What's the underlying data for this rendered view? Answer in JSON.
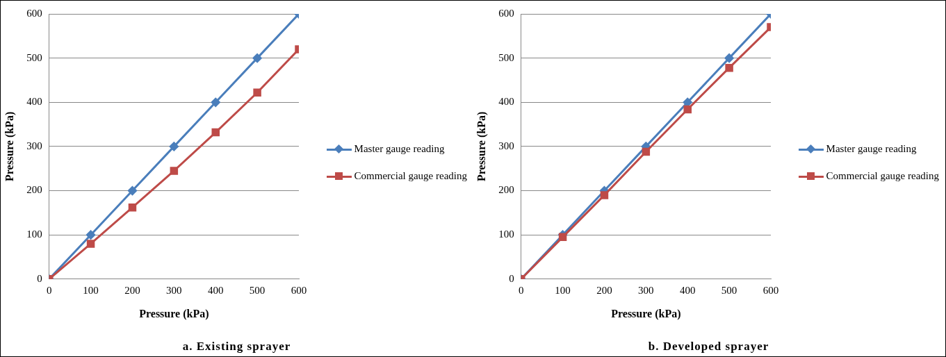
{
  "chart_data": [
    {
      "type": "line",
      "xlabel": "Pressure (kPa)",
      "ylabel": "Pressure (kPa)",
      "annotations": [
        "a. Existing sprayer"
      ],
      "x": [
        0,
        100,
        200,
        300,
        400,
        500,
        600
      ],
      "series": [
        {
          "name": "Master gauge reading",
          "color": "#4a7ebb",
          "marker": "diamond",
          "values": [
            0,
            100,
            200,
            300,
            400,
            500,
            600
          ]
        },
        {
          "name": "Commercial gauge reading",
          "color": "#be4b48",
          "marker": "square",
          "values": [
            0,
            80,
            162,
            245,
            332,
            422,
            520
          ]
        }
      ],
      "xlim": [
        0,
        600
      ],
      "xticks": [
        0,
        100,
        200,
        300,
        400,
        500,
        600
      ],
      "ylim": [
        0,
        600
      ],
      "yticks": [
        0,
        100,
        200,
        300,
        400,
        500,
        600
      ],
      "grid": "y",
      "legend": "right"
    },
    {
      "type": "line",
      "xlabel": "Pressure (kPa)",
      "ylabel": "Pressure (kPa)",
      "annotations": [
        "b. Developed sprayer"
      ],
      "x": [
        0,
        100,
        200,
        300,
        400,
        500,
        600
      ],
      "series": [
        {
          "name": "Master gauge reading",
          "color": "#4a7ebb",
          "marker": "diamond",
          "values": [
            0,
            100,
            200,
            300,
            400,
            500,
            600
          ]
        },
        {
          "name": "Commercial gauge reading",
          "color": "#be4b48",
          "marker": "square",
          "values": [
            0,
            95,
            190,
            288,
            384,
            478,
            570
          ]
        }
      ],
      "xlim": [
        0,
        600
      ],
      "xticks": [
        0,
        100,
        200,
        300,
        400,
        500,
        600
      ],
      "ylim": [
        0,
        600
      ],
      "yticks": [
        0,
        100,
        200,
        300,
        400,
        500,
        600
      ],
      "grid": "y",
      "legend": "right"
    }
  ]
}
